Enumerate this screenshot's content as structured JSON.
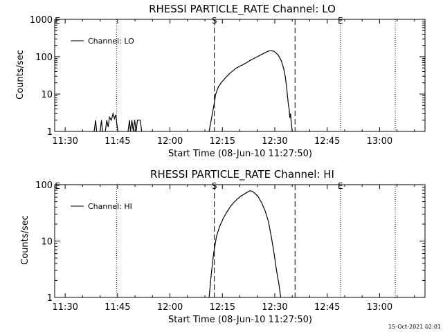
{
  "footer_timestamp": "15-Oct-2021 02:01",
  "chart_data": [
    {
      "type": "line",
      "title": "RHESSI PARTICLE_RATE Channel: LO",
      "xlabel": "Start Time (08-Jun-10 11:27:50)",
      "ylabel": "Counts/sec",
      "y_scale": "log",
      "ylim": [
        1,
        1000
      ],
      "y_ticks": [
        {
          "value": 1,
          "label": "1"
        },
        {
          "value": 10,
          "label": "10"
        },
        {
          "value": 100,
          "label": "100"
        },
        {
          "value": 1000,
          "label": "1000"
        }
      ],
      "xlim_minutes": [
        -33,
        73
      ],
      "x_ticks": [
        {
          "value": -30,
          "label": "11:30"
        },
        {
          "value": -15,
          "label": "11:45"
        },
        {
          "value": 0,
          "label": "12:00"
        },
        {
          "value": 15,
          "label": "12:15"
        },
        {
          "value": 30,
          "label": "12:30"
        },
        {
          "value": 45,
          "label": "12:45"
        },
        {
          "value": 60,
          "label": "13:00"
        }
      ],
      "legend": {
        "label": "Channel: LO",
        "position": "top-left"
      },
      "markers": [
        {
          "label": "E",
          "t": -32.2,
          "style": "none"
        },
        {
          "label": "",
          "t": -15.3,
          "style": "dotted"
        },
        {
          "label": "S",
          "t": 12.7,
          "style": "dashed"
        },
        {
          "label": "",
          "t": 35.8,
          "style": "dashed"
        },
        {
          "label": "E",
          "t": 48.8,
          "style": "dotted"
        },
        {
          "label": "",
          "t": 64.5,
          "style": "dotted"
        }
      ],
      "series": [
        {
          "name": "Channel: LO",
          "segments": [
            [
              [
                -21.7,
                1
              ],
              [
                -21.3,
                2
              ],
              [
                -21.0,
                1
              ]
            ],
            [
              [
                -20.0,
                1
              ],
              [
                -19.6,
                2
              ],
              [
                -19.3,
                1
              ]
            ],
            [
              [
                -18.5,
                1
              ],
              [
                -18.1,
                2
              ],
              [
                -17.7,
                1.3
              ],
              [
                -17.3,
                2.4
              ],
              [
                -16.8,
                2.0
              ],
              [
                -16.3,
                3.0
              ],
              [
                -15.9,
                2.2
              ],
              [
                -15.5,
                2.8
              ],
              [
                -15.2,
                1.6
              ],
              [
                -14.9,
                1
              ]
            ],
            [
              [
                -12.0,
                1
              ],
              [
                -11.6,
                2
              ],
              [
                -11.3,
                1
              ],
              [
                -10.9,
                2
              ],
              [
                -10.5,
                1
              ],
              [
                -10.1,
                2
              ],
              [
                -9.7,
                1
              ],
              [
                -9.3,
                2
              ],
              [
                -8.9,
                2
              ],
              [
                -8.5,
                2
              ],
              [
                -8.1,
                1
              ]
            ],
            [
              [
                11.2,
                1
              ],
              [
                11.8,
                2
              ],
              [
                12.4,
                4
              ],
              [
                13.1,
                10
              ],
              [
                13.9,
                16
              ],
              [
                15.0,
                22
              ],
              [
                16.0,
                28
              ],
              [
                17.0,
                35
              ],
              [
                18.0,
                42
              ],
              [
                19.0,
                50
              ],
              [
                20.0,
                56
              ],
              [
                21.0,
                62
              ],
              [
                22.0,
                70
              ],
              [
                23.0,
                80
              ],
              [
                24.0,
                90
              ],
              [
                25.0,
                100
              ],
              [
                26.0,
                112
              ],
              [
                27.0,
                125
              ],
              [
                28.0,
                140
              ],
              [
                28.8,
                145
              ],
              [
                29.6,
                142
              ],
              [
                30.2,
                130
              ],
              [
                31.0,
                110
              ],
              [
                31.8,
                80
              ],
              [
                32.5,
                50
              ],
              [
                33.0,
                30
              ],
              [
                33.4,
                15
              ],
              [
                33.9,
                5
              ],
              [
                34.1,
                4
              ],
              [
                34.3,
                2.3
              ],
              [
                34.5,
                3.0
              ],
              [
                34.7,
                1.8
              ],
              [
                35.0,
                1
              ]
            ]
          ]
        }
      ]
    },
    {
      "type": "line",
      "title": "RHESSI PARTICLE_RATE Channel: HI",
      "xlabel": "Start Time (08-Jun-10 11:27:50)",
      "ylabel": "Counts/sec",
      "y_scale": "log",
      "ylim": [
        1,
        100
      ],
      "y_ticks": [
        {
          "value": 1,
          "label": "1"
        },
        {
          "value": 10,
          "label": "10"
        },
        {
          "value": 100,
          "label": "100"
        }
      ],
      "xlim_minutes": [
        -33,
        73
      ],
      "x_ticks": [
        {
          "value": -30,
          "label": "11:30"
        },
        {
          "value": -15,
          "label": "11:45"
        },
        {
          "value": 0,
          "label": "12:00"
        },
        {
          "value": 15,
          "label": "12:15"
        },
        {
          "value": 30,
          "label": "12:30"
        },
        {
          "value": 45,
          "label": "12:45"
        },
        {
          "value": 60,
          "label": "13:00"
        }
      ],
      "legend": {
        "label": "Channel: HI",
        "position": "top-left"
      },
      "markers": [
        {
          "label": "E",
          "t": -32.2,
          "style": "none"
        },
        {
          "label": "",
          "t": -15.3,
          "style": "dotted"
        },
        {
          "label": "S",
          "t": 12.7,
          "style": "dashed"
        },
        {
          "label": "",
          "t": 35.8,
          "style": "dashed"
        },
        {
          "label": "E",
          "t": 48.8,
          "style": "dotted"
        },
        {
          "label": "",
          "t": 64.5,
          "style": "dotted"
        }
      ],
      "series": [
        {
          "name": "Channel: HI",
          "segments": [
            [
              [
                11.2,
                1
              ],
              [
                11.8,
                2.5
              ],
              [
                12.5,
                6
              ],
              [
                13.3,
                12
              ],
              [
                14.2,
                18
              ],
              [
                15.2,
                25
              ],
              [
                16.2,
                32
              ],
              [
                17.2,
                40
              ],
              [
                18.2,
                48
              ],
              [
                19.2,
                55
              ],
              [
                20.2,
                62
              ],
              [
                21.2,
                68
              ],
              [
                22.2,
                74
              ],
              [
                22.9,
                78
              ],
              [
                23.6,
                76
              ],
              [
                24.3,
                70
              ],
              [
                25.2,
                62
              ],
              [
                26.2,
                48
              ],
              [
                27.2,
                35
              ],
              [
                28.2,
                22
              ],
              [
                29.0,
                12
              ],
              [
                29.8,
                6
              ],
              [
                30.5,
                3
              ],
              [
                31.2,
                1.7
              ],
              [
                31.7,
                1
              ]
            ]
          ]
        }
      ]
    }
  ]
}
